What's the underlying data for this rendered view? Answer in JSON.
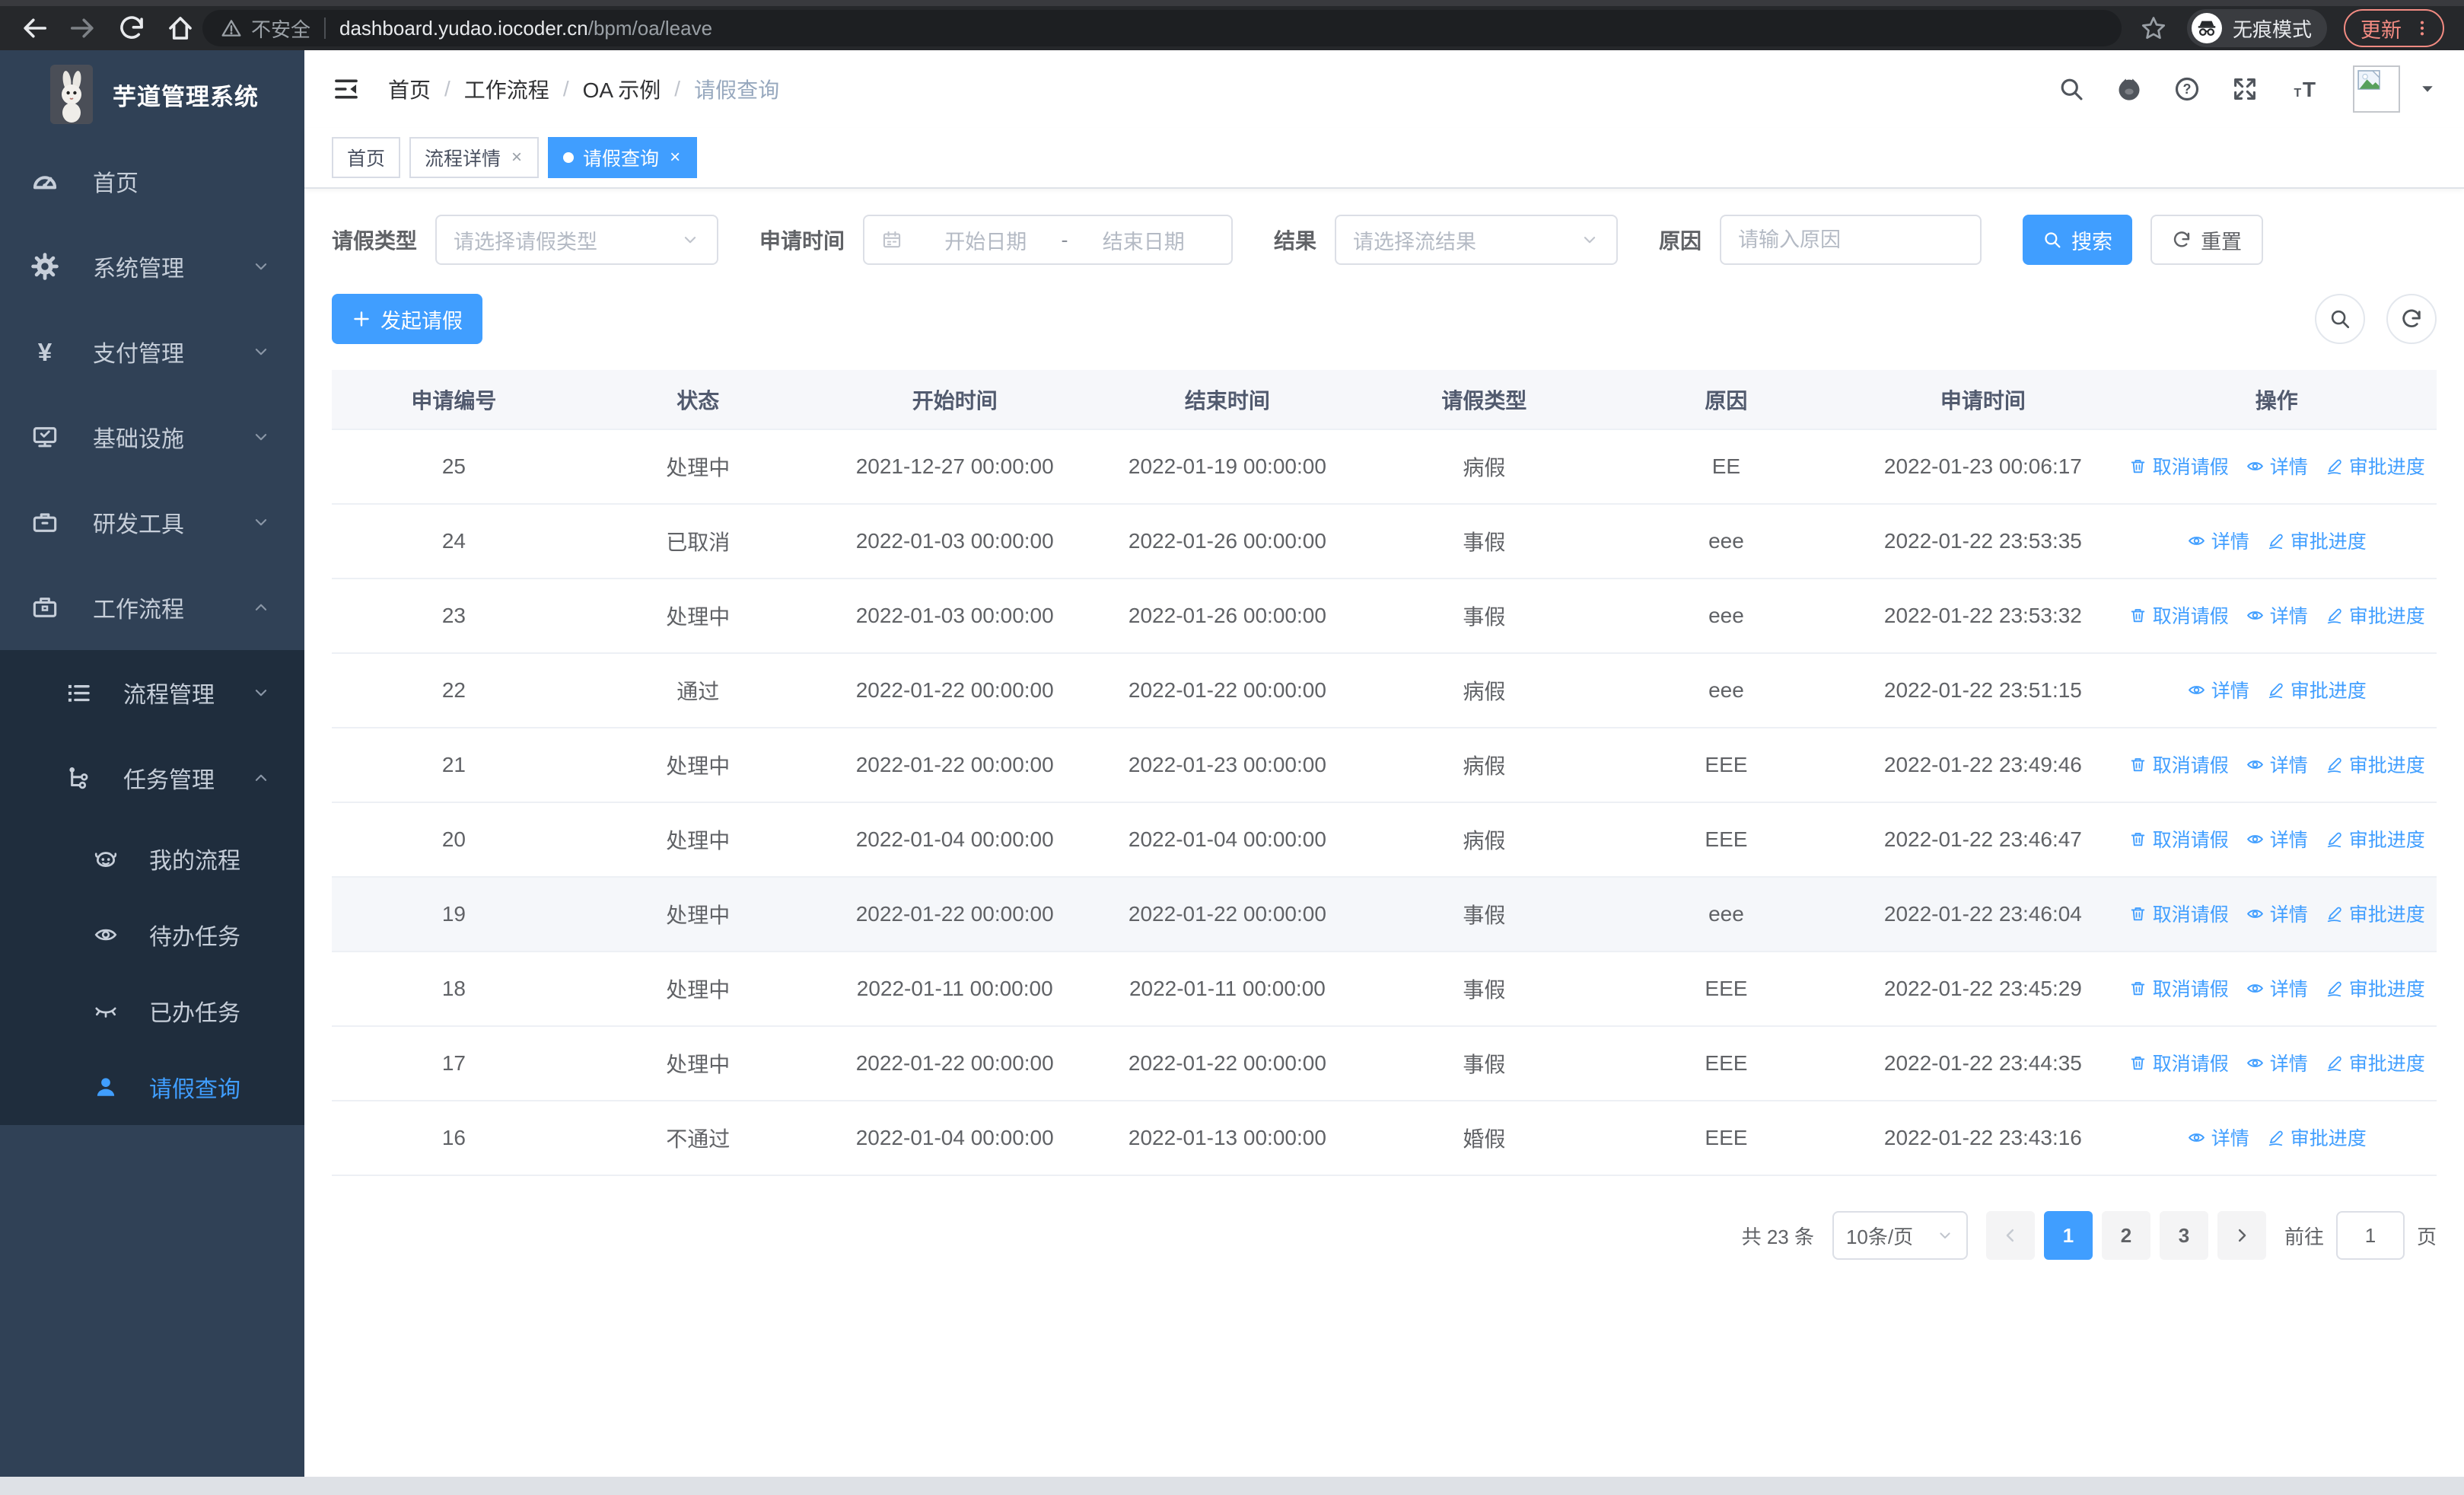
{
  "browser": {
    "not_secure": "不安全",
    "url_host": "dashboard.yudao.iocoder.cn",
    "url_path": "/bpm/oa/leave",
    "incognito_label": "无痕模式",
    "update_label": "更新"
  },
  "app": {
    "title": "芋道管理系统"
  },
  "breadcrumb": {
    "items": [
      "首页",
      "工作流程",
      "OA 示例",
      "请假查询"
    ]
  },
  "sidebar": {
    "items": [
      {
        "name": "home",
        "label": "首页",
        "icon": "gauge",
        "level": 0
      },
      {
        "name": "system",
        "label": "系统管理",
        "icon": "gear",
        "level": 0,
        "chevron": "down"
      },
      {
        "name": "payment",
        "label": "支付管理",
        "icon": "yen",
        "level": 0,
        "chevron": "down"
      },
      {
        "name": "infra",
        "label": "基础设施",
        "icon": "monitor",
        "level": 0,
        "chevron": "down"
      },
      {
        "name": "devtools",
        "label": "研发工具",
        "icon": "toolbox",
        "level": 0,
        "chevron": "down"
      },
      {
        "name": "workflow",
        "label": "工作流程",
        "icon": "briefcase",
        "level": 0,
        "chevron": "up"
      },
      {
        "name": "process-mgmt",
        "label": "流程管理",
        "icon": "list",
        "level": 1,
        "chevron": "down",
        "sub": true
      },
      {
        "name": "task-mgmt",
        "label": "任务管理",
        "icon": "flow",
        "level": 1,
        "chevron": "up",
        "sub": true
      },
      {
        "name": "my-process",
        "label": "我的流程",
        "icon": "robot",
        "level": 2,
        "sub": true
      },
      {
        "name": "todo-tasks",
        "label": "待办任务",
        "icon": "eye",
        "level": 2,
        "sub": true
      },
      {
        "name": "done-tasks",
        "label": "已办任务",
        "icon": "eye-closed",
        "level": 2,
        "sub": true
      },
      {
        "name": "leave-query",
        "label": "请假查询",
        "icon": "user",
        "level": 2,
        "sub": true,
        "active": true
      }
    ]
  },
  "tabs": [
    {
      "name": "home",
      "label": "首页"
    },
    {
      "name": "process-detail",
      "label": "流程详情",
      "closable": true
    },
    {
      "name": "leave-query",
      "label": "请假查询",
      "closable": true,
      "active": true
    }
  ],
  "filters": {
    "leave_type": {
      "label": "请假类型",
      "placeholder": "请选择请假类型"
    },
    "apply_time": {
      "label": "申请时间",
      "start_placeholder": "开始日期",
      "separator": "-",
      "end_placeholder": "结束日期"
    },
    "result": {
      "label": "结果",
      "placeholder": "请选择流结果"
    },
    "reason": {
      "label": "原因",
      "placeholder": "请输入原因"
    },
    "search_label": "搜索",
    "reset_label": "重置"
  },
  "toolbar": {
    "create_label": "发起请假"
  },
  "table": {
    "headers": [
      "申请编号",
      "状态",
      "开始时间",
      "结束时间",
      "请假类型",
      "原因",
      "申请时间",
      "操作"
    ],
    "col_widths": [
      11.6,
      11.6,
      12.8,
      13.1,
      11.3,
      11.7,
      12.7,
      15.2
    ],
    "rows": [
      {
        "id": "25",
        "status": "处理中",
        "start": "2021-12-27 00:00:00",
        "end": "2022-01-19 00:00:00",
        "type": "病假",
        "reason": "EE",
        "apply": "2022-01-23 00:06:17",
        "actions": [
          "cancel",
          "detail",
          "progress"
        ]
      },
      {
        "id": "24",
        "status": "已取消",
        "start": "2022-01-03 00:00:00",
        "end": "2022-01-26 00:00:00",
        "type": "事假",
        "reason": "eee",
        "apply": "2022-01-22 23:53:35",
        "actions": [
          "detail",
          "progress"
        ]
      },
      {
        "id": "23",
        "status": "处理中",
        "start": "2022-01-03 00:00:00",
        "end": "2022-01-26 00:00:00",
        "type": "事假",
        "reason": "eee",
        "apply": "2022-01-22 23:53:32",
        "actions": [
          "cancel",
          "detail",
          "progress"
        ]
      },
      {
        "id": "22",
        "status": "通过",
        "start": "2022-01-22 00:00:00",
        "end": "2022-01-22 00:00:00",
        "type": "病假",
        "reason": "eee",
        "apply": "2022-01-22 23:51:15",
        "actions": [
          "detail",
          "progress"
        ]
      },
      {
        "id": "21",
        "status": "处理中",
        "start": "2022-01-22 00:00:00",
        "end": "2022-01-23 00:00:00",
        "type": "病假",
        "reason": "EEE",
        "apply": "2022-01-22 23:49:46",
        "actions": [
          "cancel",
          "detail",
          "progress"
        ]
      },
      {
        "id": "20",
        "status": "处理中",
        "start": "2022-01-04 00:00:00",
        "end": "2022-01-04 00:00:00",
        "type": "病假",
        "reason": "EEE",
        "apply": "2022-01-22 23:46:47",
        "actions": [
          "cancel",
          "detail",
          "progress"
        ]
      },
      {
        "id": "19",
        "status": "处理中",
        "start": "2022-01-22 00:00:00",
        "end": "2022-01-22 00:00:00",
        "type": "事假",
        "reason": "eee",
        "apply": "2022-01-22 23:46:04",
        "actions": [
          "cancel",
          "detail",
          "progress"
        ],
        "highlight": true
      },
      {
        "id": "18",
        "status": "处理中",
        "start": "2022-01-11 00:00:00",
        "end": "2022-01-11 00:00:00",
        "type": "事假",
        "reason": "EEE",
        "apply": "2022-01-22 23:45:29",
        "actions": [
          "cancel",
          "detail",
          "progress"
        ]
      },
      {
        "id": "17",
        "status": "处理中",
        "start": "2022-01-22 00:00:00",
        "end": "2022-01-22 00:00:00",
        "type": "事假",
        "reason": "EEE",
        "apply": "2022-01-22 23:44:35",
        "actions": [
          "cancel",
          "detail",
          "progress"
        ]
      },
      {
        "id": "16",
        "status": "不通过",
        "start": "2022-01-04 00:00:00",
        "end": "2022-01-13 00:00:00",
        "type": "婚假",
        "reason": "EEE",
        "apply": "2022-01-22 23:43:16",
        "actions": [
          "detail",
          "progress"
        ]
      }
    ]
  },
  "actions_labels": {
    "cancel": "取消请假",
    "detail": "详情",
    "progress": "审批进度"
  },
  "pagination": {
    "total": "共 23 条",
    "per_page": "10条/页",
    "pages": [
      "1",
      "2",
      "3"
    ],
    "active_page": "1",
    "goto_label": "前往",
    "goto_value": "1",
    "page_unit": "页"
  },
  "colors": {
    "primary": "#409eff",
    "sidebar_bg": "#304156",
    "submenu_bg": "#1f2d3d",
    "update_accent": "#f28b82"
  }
}
